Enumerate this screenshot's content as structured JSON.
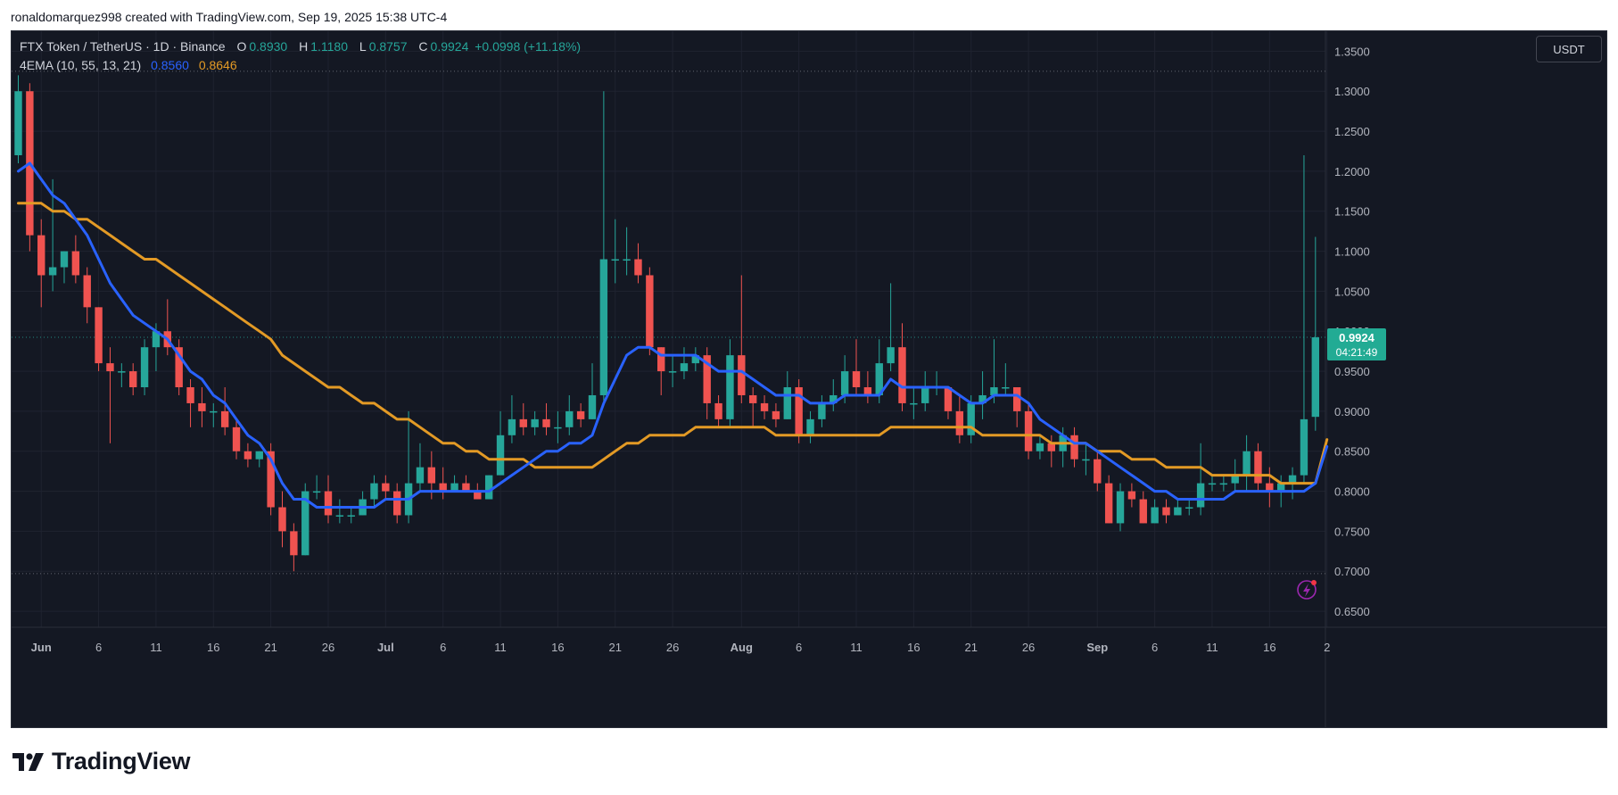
{
  "credit": "ronaldomarquez998 created with TradingView.com, Sep 19, 2025 15:38 UTC-4",
  "legend": {
    "symbol": "FTX Token / TetherUS · 1D · Binance",
    "open_label": "O",
    "open": "0.8930",
    "high_label": "H",
    "high": "1.1180",
    "low_label": "L",
    "low": "0.8757",
    "close_label": "C",
    "close": "0.9924",
    "change": "+0.0998 (+11.18%)",
    "indicator": "4EMA (10, 55, 13, 21)",
    "ema_fast": "0.8560",
    "ema_slow": "0.8646"
  },
  "currency_button": "USDT",
  "price_badge": {
    "price": "0.9924",
    "countdown": "04:21:49"
  },
  "brand": "TradingView",
  "colors": {
    "background": "#141823",
    "up": "#26a69a",
    "down": "#ef5350",
    "ema_fast": "#2962ff",
    "ema_slow": "#e39a25",
    "grid": "#1f2330",
    "axis_text": "#b2b5be"
  },
  "chart_data": {
    "type": "candlestick",
    "title": "FTX Token / TetherUS · 1D · Binance",
    "y_ticks": [
      "0.6500",
      "0.7000",
      "0.7500",
      "0.8000",
      "0.8500",
      "0.9000",
      "0.9500",
      "1.0000",
      "1.0500",
      "1.1000",
      "1.1500",
      "1.2000",
      "1.2500",
      "1.3000",
      "1.3500"
    ],
    "ylim": [
      0.63,
      1.375
    ],
    "x_ticks": [
      {
        "label": "Jun",
        "i": 2,
        "bold": true
      },
      {
        "label": "6",
        "i": 7
      },
      {
        "label": "11",
        "i": 12
      },
      {
        "label": "16",
        "i": 17
      },
      {
        "label": "21",
        "i": 22
      },
      {
        "label": "26",
        "i": 27
      },
      {
        "label": "Jul",
        "i": 32,
        "bold": true
      },
      {
        "label": "6",
        "i": 37
      },
      {
        "label": "11",
        "i": 42
      },
      {
        "label": "16",
        "i": 47
      },
      {
        "label": "21",
        "i": 52
      },
      {
        "label": "26",
        "i": 57
      },
      {
        "label": "Aug",
        "i": 63,
        "bold": true
      },
      {
        "label": "6",
        "i": 68
      },
      {
        "label": "11",
        "i": 73
      },
      {
        "label": "16",
        "i": 78
      },
      {
        "label": "21",
        "i": 83
      },
      {
        "label": "26",
        "i": 88
      },
      {
        "label": "Sep",
        "i": 94,
        "bold": true
      },
      {
        "label": "6",
        "i": 99
      },
      {
        "label": "11",
        "i": 104
      },
      {
        "label": "16",
        "i": 109
      },
      {
        "label": "2",
        "i": 114
      }
    ],
    "candles": [
      [
        1.22,
        1.3,
        1.32,
        1.21
      ],
      [
        1.3,
        1.12,
        1.31,
        1.1
      ],
      [
        1.12,
        1.07,
        1.14,
        1.03
      ],
      [
        1.07,
        1.08,
        1.19,
        1.05
      ],
      [
        1.08,
        1.1,
        1.1,
        1.06
      ],
      [
        1.1,
        1.07,
        1.12,
        1.06
      ],
      [
        1.07,
        1.03,
        1.08,
        1.01
      ],
      [
        1.03,
        0.96,
        1.03,
        0.95
      ],
      [
        0.96,
        0.95,
        0.98,
        0.86
      ],
      [
        0.95,
        0.95,
        0.96,
        0.93
      ],
      [
        0.95,
        0.93,
        0.96,
        0.92
      ],
      [
        0.93,
        0.98,
        0.99,
        0.92
      ],
      [
        0.98,
        1.0,
        1.01,
        0.95
      ],
      [
        1.0,
        0.98,
        1.04,
        0.97
      ],
      [
        0.98,
        0.93,
        0.99,
        0.92
      ],
      [
        0.93,
        0.91,
        0.94,
        0.88
      ],
      [
        0.91,
        0.9,
        0.93,
        0.88
      ],
      [
        0.9,
        0.9,
        0.91,
        0.88
      ],
      [
        0.9,
        0.88,
        0.93,
        0.87
      ],
      [
        0.88,
        0.85,
        0.89,
        0.84
      ],
      [
        0.85,
        0.84,
        0.86,
        0.83
      ],
      [
        0.84,
        0.85,
        0.85,
        0.83
      ],
      [
        0.85,
        0.78,
        0.86,
        0.77
      ],
      [
        0.78,
        0.75,
        0.8,
        0.73
      ],
      [
        0.75,
        0.72,
        0.76,
        0.7
      ],
      [
        0.72,
        0.8,
        0.81,
        0.72
      ],
      [
        0.8,
        0.8,
        0.82,
        0.79
      ],
      [
        0.8,
        0.77,
        0.82,
        0.76
      ],
      [
        0.77,
        0.77,
        0.79,
        0.76
      ],
      [
        0.77,
        0.77,
        0.78,
        0.76
      ],
      [
        0.77,
        0.79,
        0.8,
        0.77
      ],
      [
        0.79,
        0.81,
        0.82,
        0.78
      ],
      [
        0.81,
        0.8,
        0.82,
        0.79
      ],
      [
        0.8,
        0.77,
        0.81,
        0.76
      ],
      [
        0.77,
        0.81,
        0.9,
        0.76
      ],
      [
        0.81,
        0.83,
        0.86,
        0.8
      ],
      [
        0.83,
        0.81,
        0.85,
        0.79
      ],
      [
        0.81,
        0.8,
        0.83,
        0.79
      ],
      [
        0.8,
        0.81,
        0.82,
        0.8
      ],
      [
        0.81,
        0.8,
        0.82,
        0.8
      ],
      [
        0.8,
        0.79,
        0.81,
        0.79
      ],
      [
        0.79,
        0.82,
        0.82,
        0.79
      ],
      [
        0.82,
        0.87,
        0.9,
        0.83
      ],
      [
        0.87,
        0.89,
        0.92,
        0.86
      ],
      [
        0.89,
        0.88,
        0.91,
        0.87
      ],
      [
        0.88,
        0.89,
        0.9,
        0.87
      ],
      [
        0.89,
        0.88,
        0.91,
        0.87
      ],
      [
        0.88,
        0.88,
        0.9,
        0.86
      ],
      [
        0.88,
        0.9,
        0.92,
        0.87
      ],
      [
        0.9,
        0.89,
        0.91,
        0.88
      ],
      [
        0.89,
        0.92,
        0.96,
        0.89
      ],
      [
        0.92,
        1.09,
        1.3,
        0.91
      ],
      [
        1.09,
        1.09,
        1.14,
        1.06
      ],
      [
        1.09,
        1.09,
        1.13,
        1.07
      ],
      [
        1.09,
        1.07,
        1.11,
        1.06
      ],
      [
        1.07,
        0.98,
        1.08,
        0.97
      ],
      [
        0.98,
        0.95,
        0.98,
        0.92
      ],
      [
        0.95,
        0.95,
        0.97,
        0.93
      ],
      [
        0.95,
        0.96,
        0.98,
        0.94
      ],
      [
        0.96,
        0.97,
        0.98,
        0.95
      ],
      [
        0.97,
        0.91,
        0.98,
        0.89
      ],
      [
        0.91,
        0.89,
        0.92,
        0.88
      ],
      [
        0.89,
        0.97,
        0.99,
        0.88
      ],
      [
        0.97,
        0.92,
        1.07,
        0.91
      ],
      [
        0.92,
        0.91,
        0.93,
        0.88
      ],
      [
        0.91,
        0.9,
        0.92,
        0.89
      ],
      [
        0.9,
        0.89,
        0.91,
        0.88
      ],
      [
        0.89,
        0.93,
        0.95,
        0.89
      ],
      [
        0.93,
        0.87,
        0.94,
        0.86
      ],
      [
        0.87,
        0.89,
        0.9,
        0.86
      ],
      [
        0.89,
        0.91,
        0.92,
        0.88
      ],
      [
        0.91,
        0.92,
        0.94,
        0.9
      ],
      [
        0.92,
        0.95,
        0.97,
        0.91
      ],
      [
        0.95,
        0.93,
        0.99,
        0.92
      ],
      [
        0.93,
        0.92,
        0.95,
        0.91
      ],
      [
        0.92,
        0.96,
        0.99,
        0.91
      ],
      [
        0.96,
        0.98,
        1.06,
        0.95
      ],
      [
        0.98,
        0.91,
        1.01,
        0.9
      ],
      [
        0.91,
        0.91,
        0.93,
        0.89
      ],
      [
        0.91,
        0.93,
        0.95,
        0.9
      ],
      [
        0.93,
        0.93,
        0.95,
        0.92
      ],
      [
        0.93,
        0.9,
        0.93,
        0.89
      ],
      [
        0.9,
        0.87,
        0.92,
        0.86
      ],
      [
        0.87,
        0.91,
        0.92,
        0.86
      ],
      [
        0.91,
        0.92,
        0.95,
        0.89
      ],
      [
        0.92,
        0.93,
        0.99,
        0.91
      ],
      [
        0.93,
        0.93,
        0.96,
        0.92
      ],
      [
        0.93,
        0.9,
        0.93,
        0.88
      ],
      [
        0.9,
        0.85,
        0.91,
        0.84
      ],
      [
        0.85,
        0.86,
        0.87,
        0.84
      ],
      [
        0.86,
        0.85,
        0.87,
        0.83
      ],
      [
        0.85,
        0.87,
        0.88,
        0.83
      ],
      [
        0.87,
        0.84,
        0.88,
        0.83
      ],
      [
        0.84,
        0.84,
        0.86,
        0.82
      ],
      [
        0.84,
        0.81,
        0.85,
        0.8
      ],
      [
        0.81,
        0.76,
        0.82,
        0.76
      ],
      [
        0.76,
        0.8,
        0.81,
        0.75
      ],
      [
        0.8,
        0.79,
        0.81,
        0.78
      ],
      [
        0.79,
        0.76,
        0.8,
        0.76
      ],
      [
        0.76,
        0.78,
        0.79,
        0.76
      ],
      [
        0.78,
        0.77,
        0.79,
        0.76
      ],
      [
        0.77,
        0.78,
        0.79,
        0.77
      ],
      [
        0.78,
        0.78,
        0.79,
        0.77
      ],
      [
        0.78,
        0.81,
        0.86,
        0.77
      ],
      [
        0.81,
        0.81,
        0.82,
        0.8
      ],
      [
        0.81,
        0.81,
        0.82,
        0.8
      ],
      [
        0.81,
        0.82,
        0.84,
        0.8
      ],
      [
        0.82,
        0.85,
        0.87,
        0.8
      ],
      [
        0.85,
        0.81,
        0.86,
        0.8
      ],
      [
        0.81,
        0.8,
        0.83,
        0.78
      ],
      [
        0.8,
        0.81,
        0.82,
        0.78
      ],
      [
        0.81,
        0.82,
        0.83,
        0.79
      ],
      [
        0.82,
        0.89,
        1.22,
        0.81
      ],
      [
        0.893,
        0.9924,
        1.118,
        0.8757
      ]
    ],
    "ema_fast": [
      1.2,
      1.21,
      1.19,
      1.17,
      1.16,
      1.14,
      1.12,
      1.09,
      1.06,
      1.04,
      1.02,
      1.01,
      1.0,
      0.99,
      0.97,
      0.95,
      0.94,
      0.92,
      0.91,
      0.89,
      0.87,
      0.86,
      0.84,
      0.81,
      0.79,
      0.79,
      0.78,
      0.78,
      0.78,
      0.78,
      0.78,
      0.78,
      0.79,
      0.79,
      0.79,
      0.8,
      0.8,
      0.8,
      0.8,
      0.8,
      0.8,
      0.8,
      0.81,
      0.82,
      0.83,
      0.84,
      0.85,
      0.85,
      0.86,
      0.86,
      0.87,
      0.91,
      0.94,
      0.97,
      0.98,
      0.98,
      0.97,
      0.97,
      0.97,
      0.97,
      0.96,
      0.95,
      0.95,
      0.95,
      0.94,
      0.93,
      0.92,
      0.92,
      0.92,
      0.91,
      0.91,
      0.91,
      0.92,
      0.92,
      0.92,
      0.92,
      0.94,
      0.93,
      0.93,
      0.93,
      0.93,
      0.93,
      0.92,
      0.91,
      0.91,
      0.92,
      0.92,
      0.92,
      0.91,
      0.89,
      0.88,
      0.87,
      0.86,
      0.86,
      0.85,
      0.84,
      0.83,
      0.82,
      0.81,
      0.8,
      0.8,
      0.79,
      0.79,
      0.79,
      0.79,
      0.79,
      0.8,
      0.8,
      0.8,
      0.8,
      0.8,
      0.8,
      0.8,
      0.81,
      0.856
    ],
    "ema_slow": [
      1.16,
      1.16,
      1.16,
      1.15,
      1.15,
      1.14,
      1.14,
      1.13,
      1.12,
      1.11,
      1.1,
      1.09,
      1.09,
      1.08,
      1.07,
      1.06,
      1.05,
      1.04,
      1.03,
      1.02,
      1.01,
      1.0,
      0.99,
      0.97,
      0.96,
      0.95,
      0.94,
      0.93,
      0.93,
      0.92,
      0.91,
      0.91,
      0.9,
      0.89,
      0.89,
      0.88,
      0.87,
      0.86,
      0.86,
      0.85,
      0.85,
      0.84,
      0.84,
      0.84,
      0.84,
      0.83,
      0.83,
      0.83,
      0.83,
      0.83,
      0.83,
      0.84,
      0.85,
      0.86,
      0.86,
      0.87,
      0.87,
      0.87,
      0.87,
      0.88,
      0.88,
      0.88,
      0.88,
      0.88,
      0.88,
      0.88,
      0.87,
      0.87,
      0.87,
      0.87,
      0.87,
      0.87,
      0.87,
      0.87,
      0.87,
      0.87,
      0.88,
      0.88,
      0.88,
      0.88,
      0.88,
      0.88,
      0.88,
      0.88,
      0.87,
      0.87,
      0.87,
      0.87,
      0.87,
      0.87,
      0.86,
      0.86,
      0.86,
      0.86,
      0.85,
      0.85,
      0.85,
      0.84,
      0.84,
      0.84,
      0.83,
      0.83,
      0.83,
      0.83,
      0.82,
      0.82,
      0.82,
      0.82,
      0.82,
      0.82,
      0.81,
      0.81,
      0.81,
      0.81,
      0.8646
    ],
    "horizontal_lines": [
      1.325,
      0.697,
      0.9924
    ]
  }
}
